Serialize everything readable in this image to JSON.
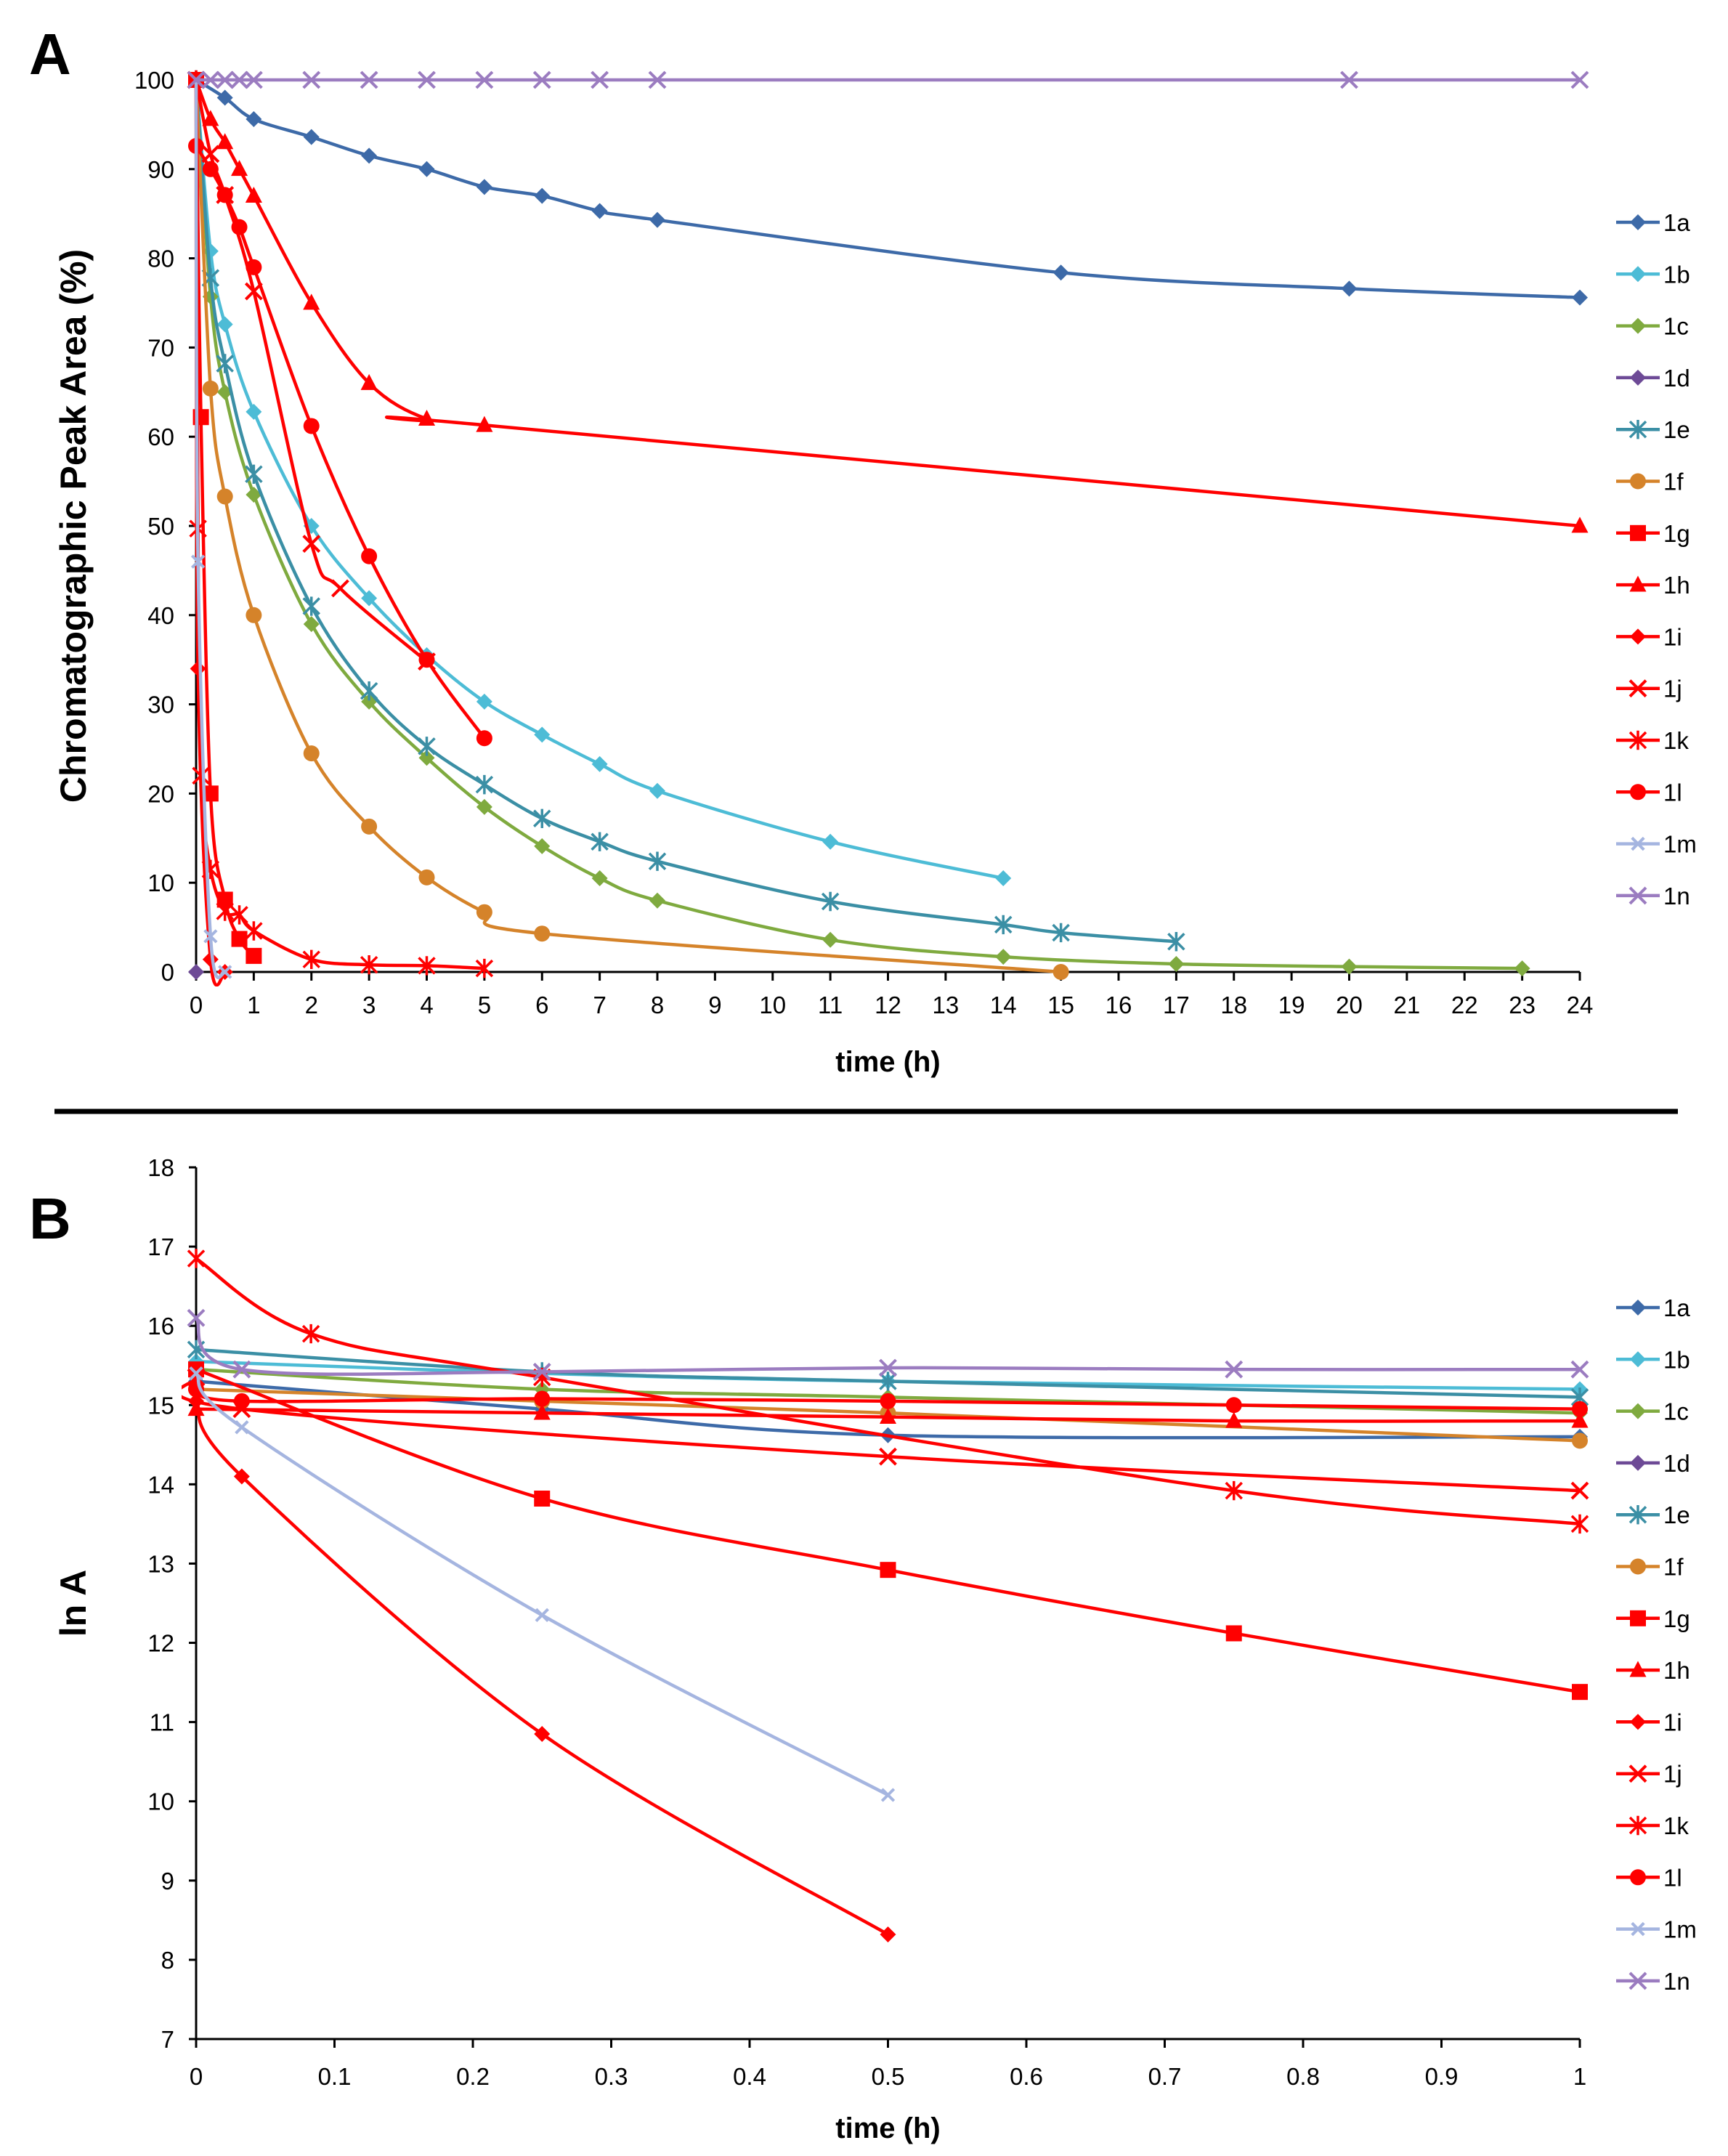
{
  "figure": {
    "divider": true
  },
  "chart_data": [
    {
      "panel": "A",
      "type": "line",
      "xlabel": "time (h)",
      "ylabel": "Chromatographic Peak Area (%)",
      "xlim": [
        0,
        24
      ],
      "ylim": [
        0,
        100
      ],
      "xticks": [
        "0",
        "1",
        "2",
        "3",
        "4",
        "5",
        "6",
        "7",
        "8",
        "9",
        "10",
        "11",
        "12",
        "13",
        "14",
        "15",
        "16",
        "17",
        "18",
        "19",
        "20",
        "21",
        "22",
        "23",
        "24"
      ],
      "yticks": [
        "0",
        "10",
        "20",
        "30",
        "40",
        "50",
        "60",
        "70",
        "80",
        "90",
        "100"
      ],
      "legend": "right",
      "series": [
        {
          "name": "1a",
          "color": "#3d6aa8",
          "marker": "diamond",
          "x": [
            0,
            0.5,
            1,
            2,
            3,
            4,
            5,
            6,
            7,
            8,
            15,
            20,
            24
          ],
          "y": [
            100,
            98,
            95.6,
            93.6,
            91.5,
            90,
            88,
            87,
            85.3,
            84.3,
            78.4,
            76.6,
            75.6
          ]
        },
        {
          "name": "1b",
          "color": "#4dbcd6",
          "marker": "diamond",
          "x": [
            0,
            0.25,
            0.5,
            1,
            2,
            3,
            4,
            5,
            6,
            7,
            8,
            11,
            14
          ],
          "y": [
            100,
            80.8,
            72.6,
            62.8,
            50,
            41.9,
            35.5,
            30.3,
            26.6,
            23.3,
            20.3,
            14.6,
            10.5
          ]
        },
        {
          "name": "1c",
          "color": "#7faa3f",
          "marker": "diamond",
          "x": [
            0,
            0.25,
            0.5,
            1,
            2,
            3,
            4,
            5,
            6,
            7,
            8,
            11,
            14,
            17,
            20,
            23
          ],
          "y": [
            100,
            75.7,
            65,
            53.5,
            39,
            30.3,
            24,
            18.5,
            14.1,
            10.5,
            8,
            3.6,
            1.7,
            0.9,
            0.6,
            0.4
          ]
        },
        {
          "name": "1d",
          "color": "#6d4a96",
          "marker": "diamond",
          "x": [
            0
          ],
          "y": [
            0
          ]
        },
        {
          "name": "1e",
          "color": "#3b8fa5",
          "marker": "asterisk",
          "x": [
            0,
            0.25,
            0.5,
            1,
            2,
            3,
            4,
            5,
            6,
            7,
            8,
            11,
            14,
            15,
            17
          ],
          "y": [
            100,
            77.8,
            68.2,
            55.8,
            41,
            31.5,
            25.3,
            21,
            17.2,
            14.6,
            12.4,
            7.9,
            5.3,
            4.4,
            3.4
          ]
        },
        {
          "name": "1f",
          "color": "#d5832a",
          "marker": "circle",
          "x": [
            0,
            0.25,
            0.5,
            1,
            2,
            3,
            4,
            5,
            6,
            15
          ],
          "y": [
            100,
            65.4,
            53.3,
            40,
            24.5,
            16.3,
            10.6,
            6.7,
            4.3,
            0
          ]
        },
        {
          "name": "1g",
          "color": "#ff0000",
          "marker": "square",
          "x": [
            0,
            0.083,
            0.25,
            0.5,
            0.75,
            1
          ],
          "y": [
            100,
            62.2,
            20,
            8.1,
            3.7,
            1.8
          ]
        },
        {
          "name": "1h",
          "color": "#ff0000",
          "marker": "triangle",
          "x": [
            0,
            0.25,
            0.5,
            0.75,
            1,
            2,
            3,
            4,
            5,
            24
          ],
          "y": [
            100,
            95.6,
            93,
            90,
            87,
            75,
            66,
            62,
            61.3,
            50
          ]
        },
        {
          "name": "1i",
          "color": "#ff0000",
          "marker": "diamond",
          "x": [
            0,
            0.033,
            0.25,
            0.5
          ],
          "y": [
            100,
            34,
            1.4,
            0
          ]
        },
        {
          "name": "1j",
          "color": "#ff0000",
          "marker": "x",
          "x": [
            0,
            0.25,
            0.5,
            1,
            2,
            2.5,
            4
          ],
          "y": [
            100,
            91.7,
            87.1,
            76.3,
            48,
            43,
            34.8
          ]
        },
        {
          "name": "1k",
          "color": "#ff0000",
          "marker": "asterisk",
          "x": [
            0,
            0.033,
            0.083,
            0.25,
            0.5,
            0.75,
            1,
            2,
            3,
            4,
            5
          ],
          "y": [
            100,
            49.7,
            22,
            11.5,
            6.8,
            6.4,
            4.6,
            1.4,
            0.8,
            0.7,
            0.4
          ]
        },
        {
          "name": "1l",
          "color": "#ff0000",
          "marker": "circle",
          "x": [
            0,
            0.25,
            0.5,
            0.75,
            1,
            2,
            3,
            4,
            5
          ],
          "y": [
            92.6,
            90,
            87.1,
            83.5,
            79,
            61.2,
            46.6,
            35,
            26.2
          ]
        },
        {
          "name": "1m",
          "color": "#a5b5e0",
          "marker": "xsmall",
          "x": [
            0,
            0.033,
            0.25,
            0.5
          ],
          "y": [
            100,
            46,
            4,
            0
          ]
        },
        {
          "name": "1n",
          "color": "#9b7cc0",
          "marker": "x",
          "x": [
            0,
            0.25,
            0.5,
            0.75,
            1,
            2,
            3,
            4,
            5,
            6,
            7,
            8,
            20,
            24
          ],
          "y": [
            100,
            100,
            100,
            100,
            100,
            100,
            100,
            100,
            100,
            100,
            100,
            100,
            100,
            100
          ]
        }
      ]
    },
    {
      "panel": "B",
      "type": "line",
      "xlabel": "time (h)",
      "ylabel": "ln A",
      "xlim": [
        0,
        1
      ],
      "ylim": [
        7,
        18
      ],
      "xticks": [
        "0",
        "0.1",
        "0.2",
        "0.3",
        "0.4",
        "0.5",
        "0.6",
        "0.7",
        "0.8",
        "0.9",
        "1"
      ],
      "yticks": [
        "7",
        "8",
        "9",
        "10",
        "11",
        "12",
        "13",
        "14",
        "15",
        "16",
        "17",
        "18"
      ],
      "legend": "right",
      "series": [
        {
          "name": "1a",
          "color": "#3d6aa8",
          "marker": "diamond",
          "x": [
            0,
            0.25,
            0.5,
            1
          ],
          "y": [
            15.3,
            14.95,
            14.62,
            14.6
          ]
        },
        {
          "name": "1b",
          "color": "#4dbcd6",
          "marker": "diamond",
          "x": [
            0,
            0.25,
            0.5,
            1
          ],
          "y": [
            15.55,
            15.4,
            15.3,
            15.2
          ]
        },
        {
          "name": "1c",
          "color": "#7faa3f",
          "marker": "diamond",
          "x": [
            0,
            0.25,
            0.5,
            1
          ],
          "y": [
            15.45,
            15.2,
            15.1,
            14.9
          ]
        },
        {
          "name": "1d",
          "color": "#6d4a96",
          "marker": "diamond",
          "x": [],
          "y": []
        },
        {
          "name": "1e",
          "color": "#3b8fa5",
          "marker": "asterisk",
          "x": [
            0,
            0.25,
            0.5,
            1
          ],
          "y": [
            15.7,
            15.42,
            15.3,
            15.1
          ]
        },
        {
          "name": "1f",
          "color": "#d5832a",
          "marker": "circle",
          "x": [
            0,
            0.25,
            0.5,
            1
          ],
          "y": [
            15.2,
            15.05,
            14.9,
            14.55
          ]
        },
        {
          "name": "1g",
          "color": "#ff0000",
          "marker": "square",
          "x": [
            0,
            0.25,
            0.5,
            0.75,
            1
          ],
          "y": [
            15.45,
            13.82,
            12.92,
            12.12,
            11.38
          ]
        },
        {
          "name": "1h",
          "color": "#ff0000",
          "marker": "triangle",
          "x": [
            0,
            0.25,
            0.5,
            0.75,
            1
          ],
          "y": [
            14.95,
            14.9,
            14.85,
            14.8,
            14.8
          ]
        },
        {
          "name": "1i",
          "color": "#ff0000",
          "marker": "diamond",
          "x": [
            0,
            0.033,
            0.25,
            0.5
          ],
          "y": [
            15.05,
            14.1,
            10.85,
            8.32
          ]
        },
        {
          "name": "1j",
          "color": "#ff0000",
          "marker": "x",
          "x": [
            0,
            0.033,
            0.5,
            1
          ],
          "y": [
            15.35,
            14.95,
            14.35,
            13.92
          ]
        },
        {
          "name": "1k",
          "color": "#ff0000",
          "marker": "asterisk",
          "x": [
            0,
            0.083,
            0.25,
            0.75,
            1
          ],
          "y": [
            16.85,
            15.9,
            15.35,
            13.92,
            13.5
          ]
        },
        {
          "name": "1l",
          "color": "#ff0000",
          "marker": "circle",
          "x": [
            0,
            0.033,
            0.25,
            0.5,
            0.75,
            1
          ],
          "y": [
            15.2,
            15.05,
            15.08,
            15.05,
            15,
            14.95
          ]
        },
        {
          "name": "1m",
          "color": "#a5b5e0",
          "marker": "xsmall",
          "x": [
            0,
            0.033,
            0.25,
            0.5
          ],
          "y": [
            15.4,
            14.72,
            12.35,
            10.08
          ]
        },
        {
          "name": "1n",
          "color": "#9b7cc0",
          "marker": "x",
          "x": [
            0,
            0.033,
            0.25,
            0.5,
            0.75,
            1
          ],
          "y": [
            16.1,
            15.45,
            15.42,
            15.47,
            15.45,
            15.45
          ]
        }
      ]
    }
  ]
}
